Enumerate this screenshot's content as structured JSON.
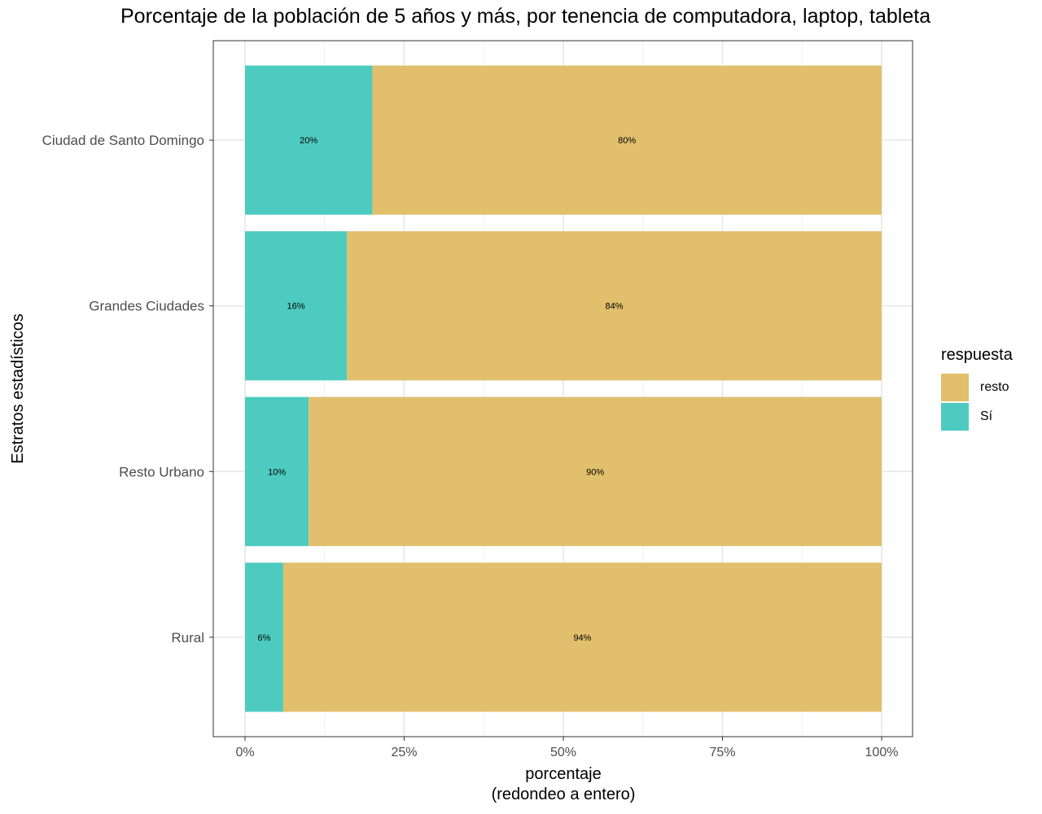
{
  "chart_data": {
    "type": "bar",
    "orientation": "horizontal",
    "stacked": true,
    "title": "Porcentaje de la población de 5 años y más, por tenencia de computadora, laptop, tableta",
    "xlabel_line1": "porcentaje",
    "xlabel_line2": "(redondeo a entero)",
    "ylabel": "Estratos estadísticos",
    "xlim": [
      0,
      100
    ],
    "x_ticks": [
      {
        "value": 0,
        "label": "0%"
      },
      {
        "value": 25,
        "label": "25%"
      },
      {
        "value": 50,
        "label": "50%"
      },
      {
        "value": 75,
        "label": "75%"
      },
      {
        "value": 100,
        "label": "100%"
      }
    ],
    "grid": true,
    "legend_title": "respuesta",
    "legend_position": "right",
    "categories": [
      "Ciudad de Santo Domingo",
      "Grandes Ciudades",
      "Resto Urbano",
      "Rural"
    ],
    "series": [
      {
        "name": "Sí",
        "color": "#4ecbc0",
        "values": [
          20,
          16,
          10,
          6
        ],
        "labels": [
          "20%",
          "16%",
          "10%",
          "6%"
        ]
      },
      {
        "name": "resto",
        "color": "#e1bf6c",
        "values": [
          80,
          84,
          90,
          94
        ],
        "labels": [
          "80%",
          "84%",
          "90%",
          "94%"
        ]
      }
    ],
    "legend_order": [
      "resto",
      "Sí"
    ]
  }
}
